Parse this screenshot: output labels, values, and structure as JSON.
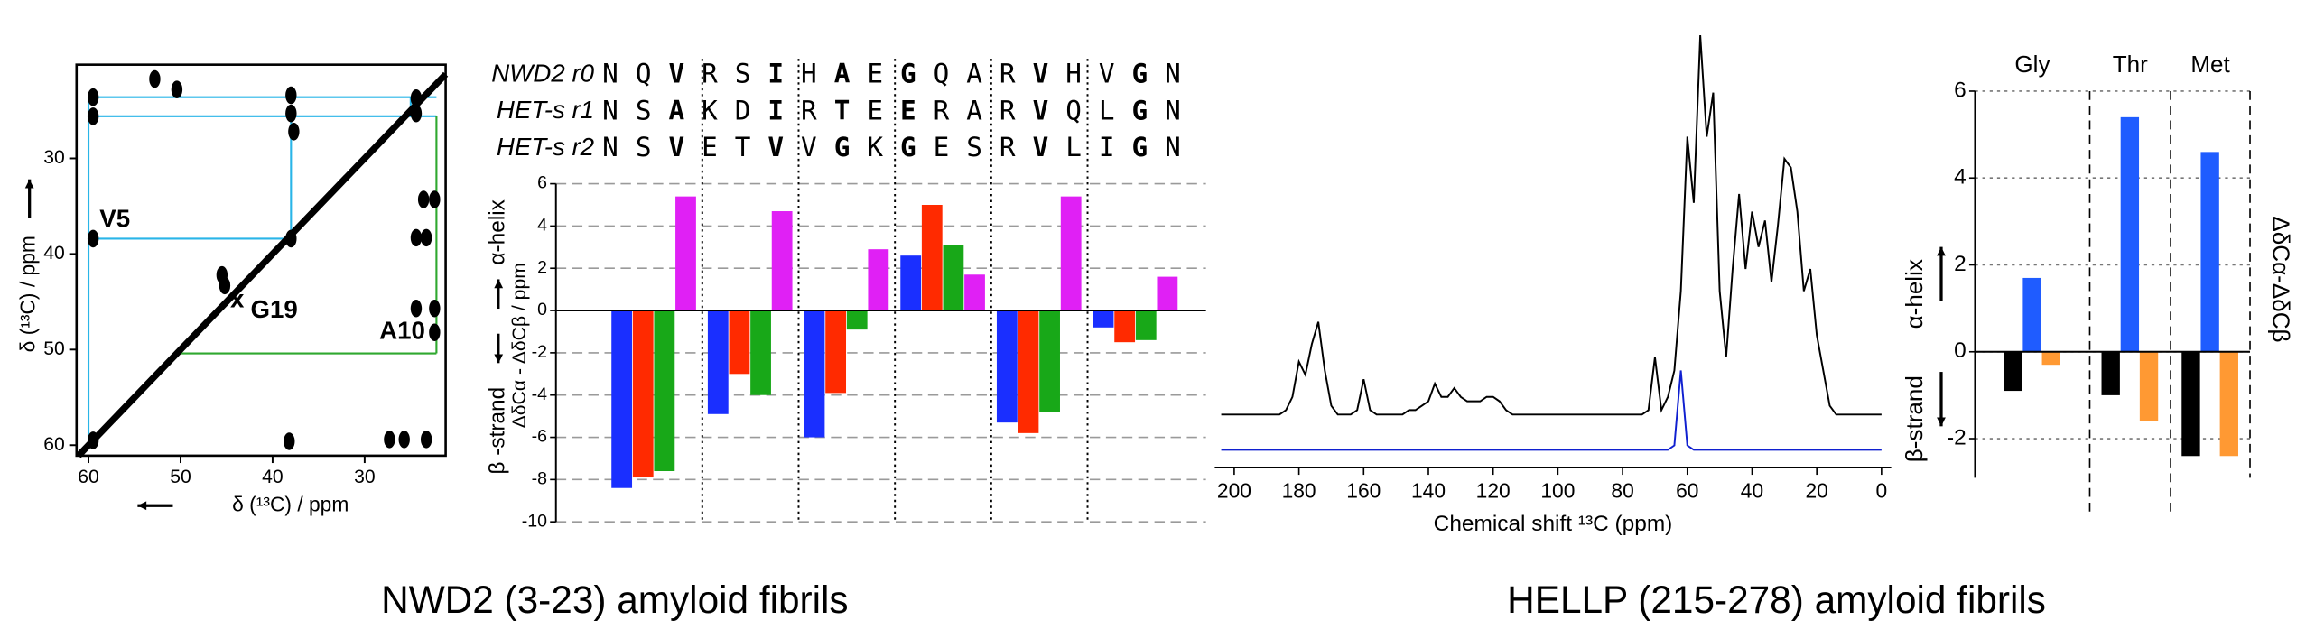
{
  "chart_data": [
    {
      "type": "contour",
      "color": "#000000",
      "xlabel": "δ (¹³C) / ppm",
      "ylabel": "δ (¹³C) / ppm",
      "xlim": [
        61.3,
        21.2
      ],
      "ylim": [
        61.1,
        20.2
      ],
      "xticks": [
        60,
        50,
        40,
        30
      ],
      "yticks": [
        30,
        40,
        50,
        60
      ],
      "x": [
        50.4,
        59.5,
        59.5,
        38,
        38,
        37.7,
        24.4,
        24.4,
        23.6,
        22.4,
        24.4,
        23.3,
        24.4,
        22.4,
        22.4,
        59.5,
        38,
        38.2,
        27.3,
        25.7,
        23.3,
        59.5,
        52.8,
        45.5,
        45.2
      ],
      "y": [
        22.8,
        23.6,
        25.6,
        23.4,
        25.3,
        27.2,
        23.7,
        25.3,
        34.3,
        34.3,
        38.3,
        38.3,
        45.7,
        45.7,
        48.2,
        38.4,
        38.4,
        59.6,
        59.4,
        59.4,
        59.4,
        59.5,
        21.7,
        42.2,
        43.3
      ],
      "lines": [
        {
          "color": "#29b5e8",
          "x": [
            60,
            22.2
          ],
          "y": [
            23.6,
            23.6
          ]
        },
        {
          "color": "#29b5e8",
          "x": [
            60,
            22.2
          ],
          "y": [
            25.6,
            25.6
          ]
        },
        {
          "color": "#29b5e8",
          "x": [
            60,
            60
          ],
          "y": [
            23.6,
            59.5
          ]
        },
        {
          "color": "#29b5e8",
          "x": [
            25,
            25
          ],
          "y": [
            23.6,
            25.6
          ]
        },
        {
          "color": "#29b5e8",
          "x": [
            38,
            38
          ],
          "y": [
            25.6,
            38.4
          ]
        },
        {
          "color": "#29b5e8",
          "x": [
            60,
            38
          ],
          "y": [
            38.4,
            38.4
          ]
        },
        {
          "color": "#2fa82f",
          "x": [
            22.2,
            22.2
          ],
          "y": [
            25.6,
            50.4
          ]
        },
        {
          "color": "#2fa82f",
          "x": [
            50.4,
            22.2
          ],
          "y": [
            50.4,
            50.4
          ]
        }
      ],
      "annotations": [
        {
          "text": "V5",
          "color": "#29b5e8",
          "x": 58.8,
          "y": 36.5
        },
        {
          "text": "x",
          "color": "#f07020",
          "x": 44.6,
          "y": 44.9
        },
        {
          "text": "G19",
          "color": "#f07020",
          "x": 42.4,
          "y": 46
        },
        {
          "text": "A10",
          "color": "#2fa82f",
          "x": 28.4,
          "y": 48.2
        }
      ]
    },
    {
      "type": "bar",
      "sequences": [
        {
          "name": "NWD2 r0",
          "color": "#1a35e0",
          "letters": [
            "N",
            "Q",
            "V",
            "R",
            "S",
            "I",
            "H",
            "A",
            "E",
            "G",
            "Q",
            "A",
            "R",
            "V",
            "H",
            "V",
            "G",
            "N"
          ]
        },
        {
          "name": "HET-s r1",
          "color": "#ef2a10",
          "letters": [
            "N",
            "S",
            "A",
            "K",
            "D",
            "I",
            "R",
            "T",
            "E",
            "E",
            "R",
            "A",
            "R",
            "V",
            "Q",
            "L",
            "G",
            "N"
          ]
        },
        {
          "name": "HET-s r2",
          "color": "#22a022",
          "letters": [
            "N",
            "S",
            "V",
            "E",
            "T",
            "V",
            "V",
            "G",
            "K",
            "G",
            "E",
            "S",
            "R",
            "V",
            "L",
            "I",
            "G",
            "N"
          ]
        }
      ],
      "highlight": [
        2,
        5,
        7,
        9,
        13,
        16
      ],
      "ylabel": "ΔδCα - ΔδCβ  / ppm",
      "helix_label": "α-helix",
      "strand_label": "β -strand",
      "categories": [
        null,
        null,
        null,
        null,
        null,
        null
      ],
      "series": [
        {
          "color": "#1a2fff",
          "values": [
            -8.4,
            -4.9,
            -6.0,
            2.6,
            -5.3,
            -0.8
          ]
        },
        {
          "color": "#ff2a00",
          "values": [
            -7.9,
            -3.0,
            -3.9,
            5.0,
            -5.8,
            -1.5
          ]
        },
        {
          "color": "#18a818",
          "values": [
            -7.6,
            -4.0,
            -0.9,
            3.1,
            -4.8,
            -1.4
          ]
        },
        {
          "color": "#e020f5",
          "values": [
            5.4,
            4.7,
            2.9,
            1.7,
            5.4,
            1.6
          ]
        }
      ],
      "ylim": [
        -10,
        6
      ],
      "yticks": [
        -10,
        -8,
        -6,
        -4,
        -2,
        0,
        2,
        4,
        6
      ],
      "grid": true
    },
    {
      "type": "line",
      "xlabel": "Chemical shift ¹³C (ppm)",
      "xlim": [
        206,
        -3
      ],
      "ylim": [
        0,
        100
      ],
      "xticks": [
        200,
        180,
        160,
        140,
        120,
        100,
        80,
        60,
        40,
        20,
        0
      ],
      "x": [
        204,
        202,
        200,
        198,
        196,
        194,
        192,
        190,
        188,
        186,
        184,
        182,
        180,
        178,
        176,
        174,
        172,
        170,
        168,
        166,
        164,
        162,
        160,
        158,
        156,
        154,
        152,
        150,
        148,
        146,
        144,
        142,
        140,
        138,
        136,
        134,
        132,
        130,
        128,
        126,
        124,
        122,
        120,
        118,
        116,
        114,
        112,
        110,
        108,
        106,
        104,
        102,
        100,
        98,
        96,
        94,
        92,
        90,
        88,
        86,
        84,
        82,
        80,
        78,
        76,
        74,
        72,
        70,
        68,
        66,
        64,
        62,
        60,
        58,
        56,
        54,
        52,
        50,
        48,
        46,
        44,
        42,
        40,
        38,
        36,
        34,
        32,
        30,
        28,
        26,
        24,
        22,
        20,
        18,
        16,
        14,
        12,
        10,
        8,
        6,
        4,
        2,
        0
      ],
      "series": [
        {
          "color": "#000000",
          "values": [
            12,
            12,
            12,
            12,
            12,
            12,
            12,
            12,
            12,
            12,
            13,
            16,
            24,
            21,
            28,
            33,
            22,
            14,
            12,
            12,
            12,
            13,
            20,
            13,
            12,
            12,
            12,
            12,
            12,
            13,
            13,
            14,
            15,
            19,
            16,
            16,
            18,
            16,
            15,
            15,
            15,
            16,
            16,
            15,
            13,
            12,
            12,
            12,
            12,
            12,
            12,
            12,
            12,
            12,
            12,
            12,
            12,
            12,
            12,
            12,
            12,
            12,
            12,
            12,
            12,
            12,
            13,
            25,
            13,
            16,
            22,
            40,
            75,
            60,
            98,
            75,
            85,
            40,
            25,
            45,
            62,
            45,
            58,
            50,
            56,
            42,
            55,
            70,
            68,
            58,
            40,
            45,
            30,
            22,
            14,
            12,
            12,
            12,
            12,
            12,
            12,
            12,
            12
          ]
        },
        {
          "color": "#1020d0",
          "values": [
            4,
            4,
            4,
            4,
            4,
            4,
            4,
            4,
            4,
            4,
            4,
            4,
            4,
            4,
            4,
            4,
            4,
            4,
            4,
            4,
            4,
            4,
            4,
            4,
            4,
            4,
            4,
            4,
            4,
            4,
            4,
            4,
            4,
            4,
            4,
            4,
            4,
            4,
            4,
            4,
            4,
            4,
            4,
            4,
            4,
            4,
            4,
            4,
            4,
            4,
            4,
            4,
            4,
            4,
            4,
            4,
            4,
            4,
            4,
            4,
            4,
            4,
            4,
            4,
            4,
            4,
            4,
            4,
            4,
            4,
            5,
            22,
            5,
            4,
            4,
            4,
            4,
            4,
            4,
            4,
            4,
            4,
            4,
            4,
            4,
            4,
            4,
            4,
            4,
            4,
            4,
            4,
            4,
            4,
            4,
            4,
            4,
            4,
            4,
            4,
            4,
            4,
            4
          ]
        }
      ]
    },
    {
      "type": "bar",
      "ylabel": "ΔδCα-ΔδCβ",
      "helix_label": "α-helix",
      "strand_label": "β-strand",
      "categories": [
        "Gly",
        "Thr",
        "Met"
      ],
      "series": [
        {
          "color": "#000000",
          "values": [
            -0.9,
            -1.0,
            -2.4
          ]
        },
        {
          "color": "#1f5cff",
          "values": [
            1.7,
            5.4,
            4.6
          ]
        },
        {
          "color": "#ff9933",
          "values": [
            -0.3,
            -1.6,
            -2.4
          ]
        }
      ],
      "ylim": [
        -2.9,
        6
      ],
      "yticks": [
        -2,
        0,
        2,
        4,
        6
      ],
      "grid": true
    }
  ],
  "captions": [
    "NWD2 (3-23) amyloid fibrils",
    "HELLP (215-278) amyloid fibrils"
  ]
}
